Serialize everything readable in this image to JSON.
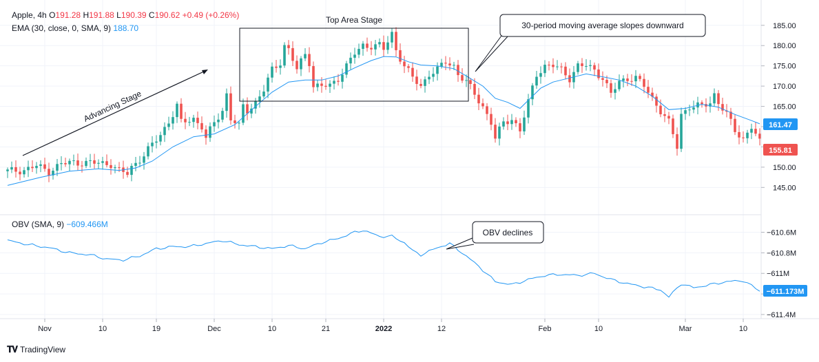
{
  "header": {
    "symbol": "Apple, 4h",
    "o_label": "O",
    "o_value": "191.28",
    "h_label": "H",
    "h_value": "191.88",
    "l_label": "L",
    "l_value": "190.39",
    "c_label": "C",
    "c_value": "190.62",
    "change": "+0.49 (+0.26%)",
    "ema_label": "EMA (30, close, 0, SMA, 9)",
    "ema_value": "188.70"
  },
  "obv_header": {
    "label": "OBV (SMA, 9)",
    "value": "−609.466M"
  },
  "annotations": {
    "advancing": "Advancing Stage",
    "top_area": "Top Area Stage",
    "ma_callout": "30-period moving average slopes downward",
    "obv_callout": "OBV declines"
  },
  "brand": "TradingView",
  "colors": {
    "up": "#26a69a",
    "down": "#ef5350",
    "ema": "#2196f3",
    "obv": "#2196f3"
  },
  "chart_data": [
    {
      "type": "candlestick",
      "title": "",
      "yaxis_ticks": [
        145,
        150,
        155,
        160,
        165,
        170,
        175,
        180,
        185
      ],
      "ylim": [
        142,
        187
      ],
      "price_tags": [
        {
          "value": "161.47",
          "color": "#2196f3"
        },
        {
          "value": "155.81",
          "color": "#ef5350"
        }
      ],
      "x_ticks": [
        "Nov",
        "10",
        "19",
        "Dec",
        "10",
        "21",
        "2022",
        "12",
        "Feb",
        "10",
        "Mar",
        "10"
      ],
      "price_path": [
        [
          0,
          149
        ],
        [
          4,
          149.3
        ],
        [
          7,
          150.3
        ],
        [
          10,
          149
        ],
        [
          13,
          150.8
        ],
        [
          16,
          151.2
        ],
        [
          19,
          151.1
        ],
        [
          22,
          151
        ],
        [
          25,
          150.8
        ],
        [
          27,
          149
        ],
        [
          29,
          148.4
        ],
        [
          30,
          150
        ],
        [
          33,
          153
        ],
        [
          37,
          158
        ],
        [
          40,
          163
        ],
        [
          41,
          165
        ],
        [
          42,
          161
        ],
        [
          45,
          162
        ],
        [
          47,
          160
        ],
        [
          48,
          157
        ],
        [
          50,
          161
        ],
        [
          52,
          164
        ],
        [
          53,
          168
        ],
        [
          54,
          162
        ],
        [
          56,
          160
        ],
        [
          57,
          165
        ],
        [
          58,
          164
        ],
        [
          60,
          166
        ],
        [
          62,
          169
        ],
        [
          64,
          174
        ],
        [
          66,
          176
        ],
        [
          67,
          180
        ],
        [
          68,
          179
        ],
        [
          70,
          174
        ],
        [
          72,
          178
        ],
        [
          73,
          176
        ],
        [
          74,
          170
        ],
        [
          76,
          170
        ],
        [
          78,
          170
        ],
        [
          80,
          172
        ],
        [
          82,
          175
        ],
        [
          84,
          178
        ],
        [
          86,
          180
        ],
        [
          88,
          180
        ],
        [
          90,
          180
        ],
        [
          91,
          179
        ],
        [
          92,
          181
        ],
        [
          93,
          183
        ],
        [
          94,
          179
        ],
        [
          96,
          175
        ],
        [
          98,
          172
        ],
        [
          100,
          170
        ],
        [
          102,
          173
        ],
        [
          104,
          174
        ],
        [
          106,
          176
        ],
        [
          108,
          175
        ],
        [
          109,
          173
        ],
        [
          111,
          171
        ],
        [
          113,
          168
        ],
        [
          115,
          165
        ],
        [
          117,
          161
        ],
        [
          118,
          157
        ],
        [
          120,
          161
        ],
        [
          122,
          162
        ],
        [
          124,
          159
        ],
        [
          126,
          166
        ],
        [
          128,
          173
        ],
        [
          130,
          175
        ],
        [
          132,
          175
        ],
        [
          134,
          174
        ],
        [
          136,
          172
        ],
        [
          138,
          175
        ],
        [
          140,
          175
        ],
        [
          142,
          174
        ],
        [
          144,
          172
        ],
        [
          146,
          168
        ],
        [
          148,
          171
        ],
        [
          150,
          172
        ],
        [
          152,
          172
        ],
        [
          154,
          170
        ],
        [
          156,
          167
        ],
        [
          158,
          164
        ],
        [
          160,
          161
        ],
        [
          161,
          158
        ],
        [
          162,
          155
        ],
        [
          163,
          163
        ],
        [
          165,
          165
        ],
        [
          167,
          165
        ],
        [
          168,
          165
        ],
        [
          170,
          166
        ],
        [
          171,
          168
        ],
        [
          172,
          166
        ],
        [
          174,
          163
        ],
        [
          176,
          159
        ],
        [
          178,
          157
        ],
        [
          180,
          160
        ],
        [
          181,
          158
        ],
        [
          182,
          156
        ]
      ],
      "ema_path": [
        [
          0,
          145.5
        ],
        [
          8,
          147.5
        ],
        [
          15,
          149
        ],
        [
          22,
          149.6
        ],
        [
          27,
          149.2
        ],
        [
          31,
          149.8
        ],
        [
          35,
          151.5
        ],
        [
          40,
          155
        ],
        [
          45,
          157.5
        ],
        [
          50,
          158.2
        ],
        [
          55,
          160.5
        ],
        [
          60,
          165
        ],
        [
          64,
          168.5
        ],
        [
          68,
          171
        ],
        [
          72,
          171.5
        ],
        [
          76,
          171.5
        ],
        [
          80,
          172.5
        ],
        [
          84,
          174.5
        ],
        [
          88,
          176.3
        ],
        [
          91,
          177.3
        ],
        [
          94,
          177.2
        ],
        [
          97,
          176
        ],
        [
          100,
          175.2
        ],
        [
          104,
          175
        ],
        [
          108,
          174.3
        ],
        [
          111,
          172.5
        ],
        [
          115,
          170
        ],
        [
          118,
          167
        ],
        [
          121,
          166
        ],
        [
          124,
          164.5
        ],
        [
          126,
          166.5
        ],
        [
          129,
          169.5
        ],
        [
          132,
          171
        ],
        [
          136,
          172
        ],
        [
          140,
          173
        ],
        [
          144,
          172.3
        ],
        [
          148,
          171.5
        ],
        [
          152,
          170
        ],
        [
          156,
          167.5
        ],
        [
          160,
          164.2
        ],
        [
          164,
          164.5
        ],
        [
          168,
          165.5
        ],
        [
          172,
          164.8
        ],
        [
          176,
          163
        ],
        [
          180,
          161.5
        ],
        [
          182,
          160.7
        ]
      ]
    },
    {
      "type": "line",
      "title": "",
      "series": [
        {
          "name": "OBV (SMA, 9)"
        }
      ],
      "yaxis_ticks": [
        "−610.6M",
        "−610.8M",
        "−611M",
        "−611.2M",
        "−611.4M"
      ],
      "value_tag": "−611.173M",
      "obv_path": [
        [
          0,
          -610.68
        ],
        [
          5,
          -610.72
        ],
        [
          10,
          -610.75
        ],
        [
          15,
          -610.8
        ],
        [
          20,
          -610.82
        ],
        [
          24,
          -610.86
        ],
        [
          28,
          -610.87
        ],
        [
          32,
          -610.83
        ],
        [
          36,
          -610.76
        ],
        [
          40,
          -610.74
        ],
        [
          44,
          -610.74
        ],
        [
          48,
          -610.71
        ],
        [
          52,
          -610.68
        ],
        [
          56,
          -610.72
        ],
        [
          60,
          -610.74
        ],
        [
          64,
          -610.76
        ],
        [
          68,
          -610.73
        ],
        [
          72,
          -610.76
        ],
        [
          76,
          -610.7
        ],
        [
          80,
          -610.66
        ],
        [
          84,
          -610.6
        ],
        [
          86,
          -610.58
        ],
        [
          90,
          -610.64
        ],
        [
          93,
          -610.64
        ],
        [
          96,
          -610.7
        ],
        [
          98,
          -610.78
        ],
        [
          100,
          -610.82
        ],
        [
          104,
          -610.75
        ],
        [
          107,
          -610.71
        ],
        [
          110,
          -610.8
        ],
        [
          114,
          -610.93
        ],
        [
          118,
          -611.08
        ],
        [
          122,
          -611.11
        ],
        [
          126,
          -611.06
        ],
        [
          130,
          -611.02
        ],
        [
          134,
          -611.01
        ],
        [
          138,
          -611.02
        ],
        [
          142,
          -611.0
        ],
        [
          146,
          -611.06
        ],
        [
          150,
          -611.1
        ],
        [
          154,
          -611.13
        ],
        [
          158,
          -611.16
        ],
        [
          160,
          -611.23
        ],
        [
          163,
          -611.1
        ],
        [
          166,
          -611.14
        ],
        [
          170,
          -611.11
        ],
        [
          174,
          -611.08
        ],
        [
          178,
          -611.07
        ],
        [
          182,
          -611.17
        ]
      ]
    }
  ]
}
